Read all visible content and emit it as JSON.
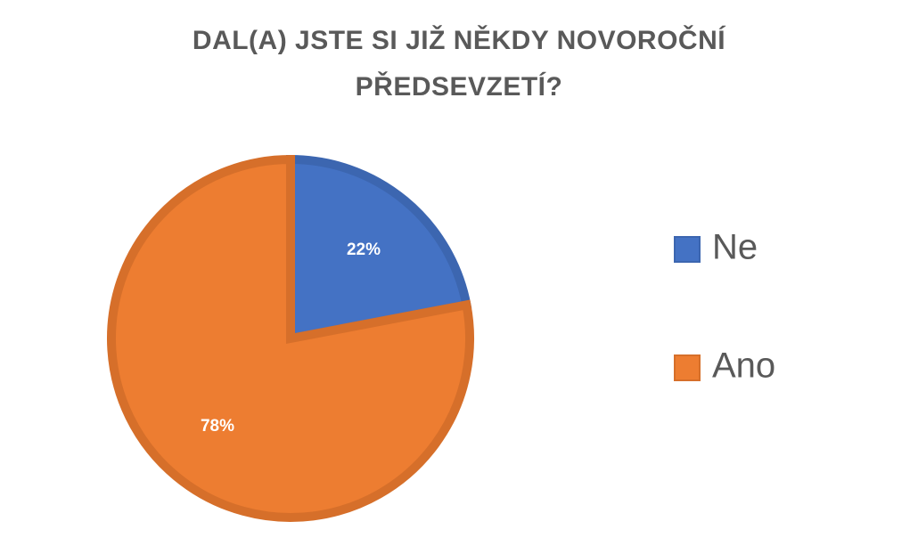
{
  "chart_data": {
    "type": "pie",
    "title": "DAL(A) JSTE SI JIŽ NĚKDY NOVOROČNÍ PŘEDSEVZETÍ?",
    "categories": [
      "Ne",
      "Ano"
    ],
    "values": [
      22,
      78
    ],
    "value_labels": [
      "22%",
      "78%"
    ],
    "colors": [
      "#4472c4",
      "#ed7d31"
    ],
    "edge_colors": [
      "#3c66b0",
      "#d66f2a"
    ]
  }
}
